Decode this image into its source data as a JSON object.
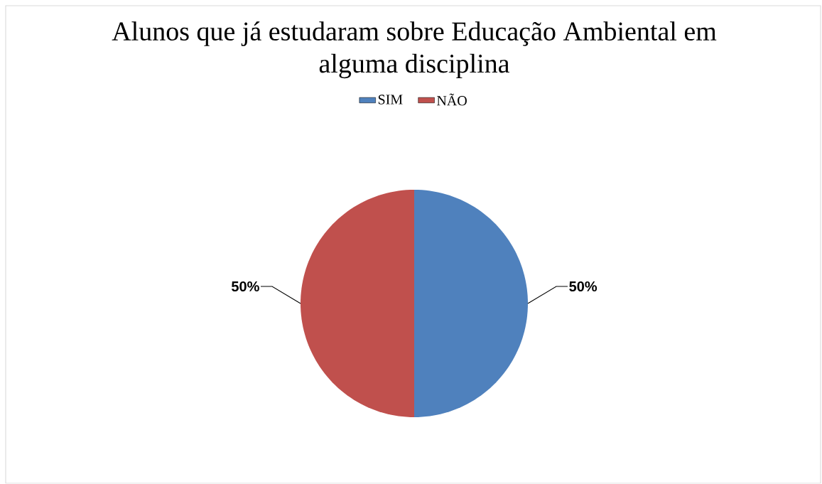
{
  "chart_data": {
    "type": "pie",
    "title": "Alunos que já estudaram sobre Educação Ambiental em alguma disciplina",
    "categories": [
      "SIM",
      "NÃO"
    ],
    "values": [
      50,
      50
    ],
    "colors": [
      "#4f81bd",
      "#c0504d"
    ],
    "value_labels": [
      "50%",
      "50%"
    ],
    "legend": "top"
  }
}
